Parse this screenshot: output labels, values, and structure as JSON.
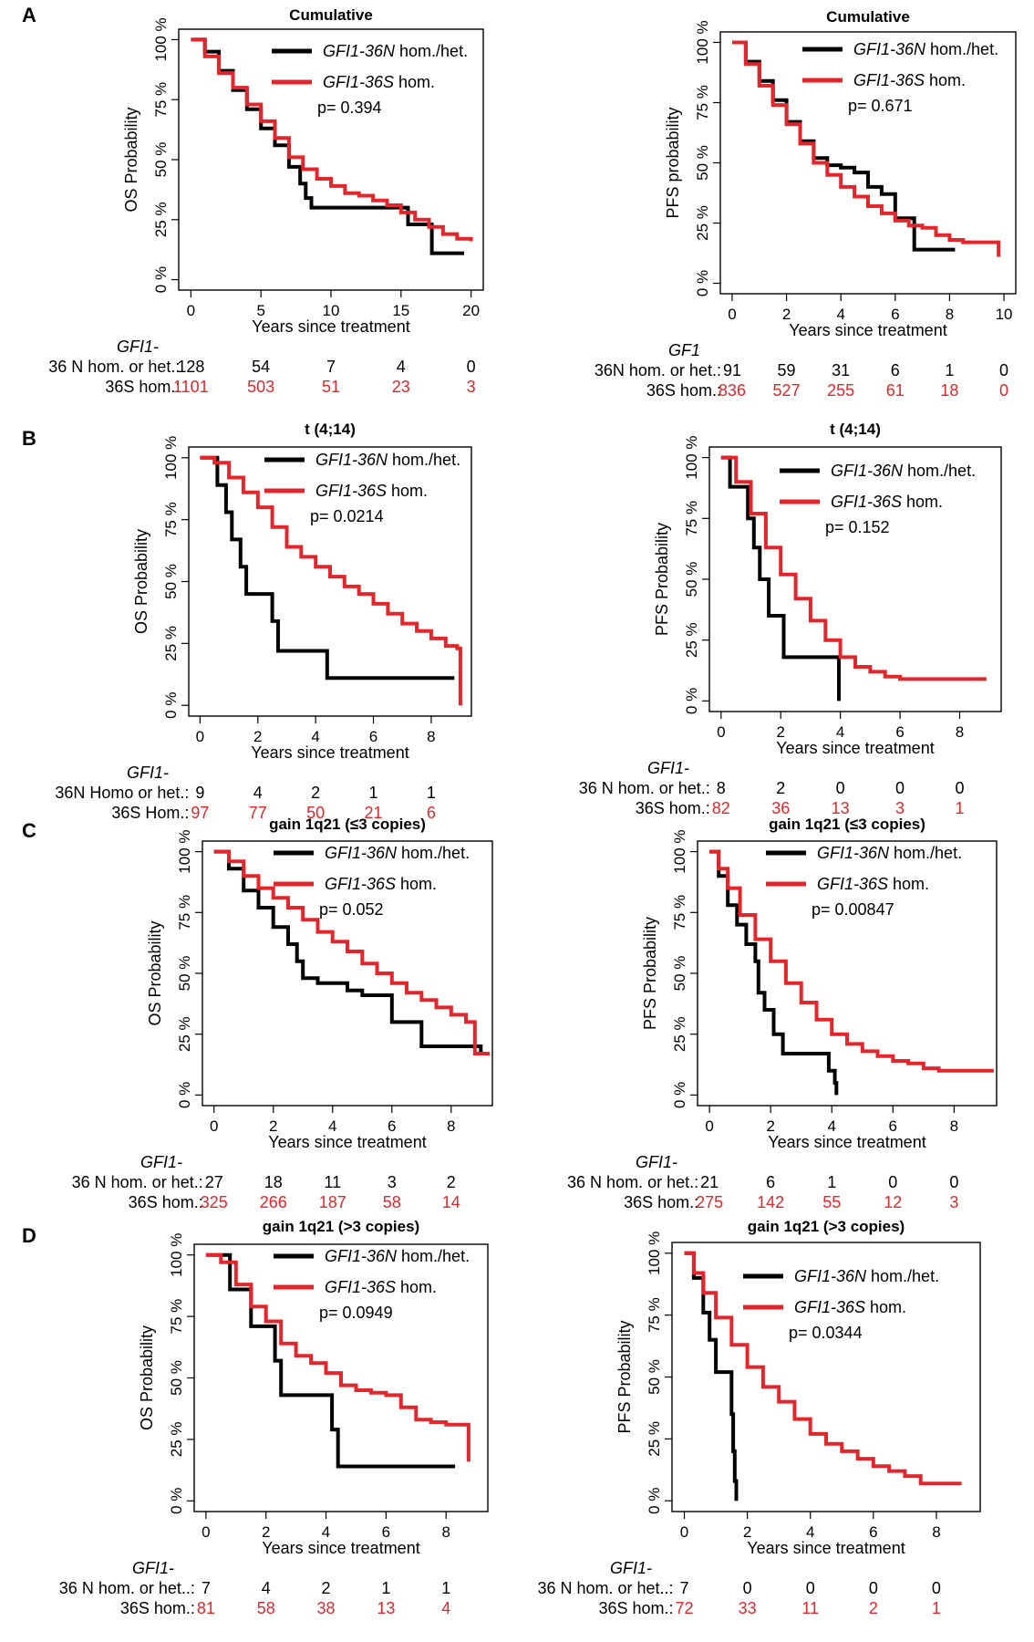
{
  "panels": [
    {
      "letter": "A"
    },
    {
      "letter": "B"
    },
    {
      "letter": "C"
    },
    {
      "letter": "D"
    }
  ],
  "chart_data": [
    {
      "type": "line",
      "panel": "A",
      "side": "left",
      "title": "Cumulative",
      "xlabel": "Years since treatment",
      "ylabel": "OS Probability",
      "xlim": [
        0,
        20
      ],
      "xticks": [
        "0",
        "5",
        "10",
        "15",
        "20"
      ],
      "ylim": [
        0,
        100
      ],
      "yticks": [
        "0 %",
        "25 %",
        "50 %",
        "75 %",
        "100 %"
      ],
      "legend": {
        "n_label": "GFI1-36N",
        "n_suffix": " hom./het.",
        "s_label": "GFI1-36S",
        "s_suffix": " hom.",
        "pvalue": "p= 0.394"
      },
      "series": [
        {
          "name": "GFI1-36N hom./het.",
          "color": "#000000",
          "x": [
            0,
            1,
            2,
            3,
            4,
            5,
            6,
            7,
            7.8,
            8.2,
            8.6,
            9,
            15,
            15.5,
            17,
            17.2,
            19.5
          ],
          "y": [
            100,
            95,
            87,
            79,
            71,
            63,
            56,
            47,
            40,
            34,
            30,
            30,
            30,
            23,
            23,
            11,
            11
          ]
        },
        {
          "name": "GFI1-36S hom.",
          "color": "#e3262b",
          "x": [
            0,
            1,
            2,
            3,
            4,
            5,
            6,
            7,
            8,
            9,
            10,
            11,
            12,
            13,
            14,
            15,
            16,
            17,
            18,
            19,
            20
          ],
          "y": [
            100,
            93,
            86,
            80,
            73,
            66,
            59,
            51,
            46,
            42,
            39,
            36,
            35,
            33,
            31,
            28,
            25,
            22,
            19,
            17,
            16
          ]
        }
      ],
      "risk_table": {
        "header": "GFI1-",
        "n_row_label": "36 N hom. or het.:",
        "s_row_label": "36S hom.:",
        "n_values": [
          "128",
          "54",
          "7",
          "4",
          "0"
        ],
        "s_values": [
          "1101",
          "503",
          "51",
          "23",
          "3"
        ]
      }
    },
    {
      "type": "line",
      "panel": "A",
      "side": "right",
      "title": "Cumulative",
      "xlabel": "Years since treatment",
      "ylabel": "PFS probability",
      "xlim": [
        0,
        10
      ],
      "xticks": [
        "0",
        "2",
        "4",
        "6",
        "8",
        "10"
      ],
      "ylim": [
        0,
        100
      ],
      "yticks": [
        "0 %",
        "25 %",
        "50 %",
        "75 %",
        "100 %"
      ],
      "legend": {
        "n_label": "GFI1-36N",
        "n_suffix": " hom./het.",
        "s_label": "GFI1-36S",
        "s_suffix": " hom.",
        "pvalue": "p= 0.671"
      },
      "series": [
        {
          "name": "GFI1-36N hom./het.",
          "color": "#000000",
          "x": [
            0,
            0.5,
            1,
            1.5,
            2,
            2.5,
            3,
            3.5,
            4,
            4.5,
            5,
            5.5,
            6,
            6.5,
            6.7,
            7,
            8.2
          ],
          "y": [
            100,
            92,
            84,
            76,
            67,
            59,
            52,
            49,
            48,
            46,
            40,
            37,
            27,
            27,
            14,
            14,
            14
          ]
        },
        {
          "name": "GFI1-36S hom.",
          "color": "#e3262b",
          "x": [
            0,
            0.5,
            1,
            1.5,
            2,
            2.5,
            3,
            3.5,
            4,
            4.5,
            5,
            5.5,
            6,
            6.5,
            7,
            7.5,
            8,
            8.5,
            9,
            9.5,
            9.8
          ],
          "y": [
            100,
            91,
            82,
            74,
            66,
            58,
            50,
            45,
            40,
            36,
            32,
            29,
            26,
            24,
            23,
            20,
            18,
            17,
            17,
            17,
            11
          ]
        }
      ],
      "risk_table": {
        "header": "GF1",
        "n_row_label": "36N hom. or het.:",
        "s_row_label": "36S hom.:",
        "n_values": [
          "91",
          "59",
          "31",
          "6",
          "1",
          "0"
        ],
        "s_values": [
          "836",
          "527",
          "255",
          "61",
          "18",
          "0"
        ]
      }
    },
    {
      "type": "line",
      "panel": "B",
      "side": "left",
      "title": "t (4;14)",
      "xlabel": "Years since treatment",
      "ylabel": "OS Probability",
      "xlim": [
        0,
        9
      ],
      "xticks": [
        "0",
        "2",
        "4",
        "6",
        "8"
      ],
      "ylim": [
        0,
        100
      ],
      "yticks": [
        "0 %",
        "25 %",
        "50 %",
        "75 %",
        "100 %"
      ],
      "legend": {
        "n_label": "GFI1-36N",
        "n_suffix": " hom./het.",
        "s_label": "GFI1-36S",
        "s_suffix": " hom.",
        "pvalue": "p= 0.0214"
      },
      "series": [
        {
          "name": "GFI1-36N hom./het.",
          "color": "#000000",
          "x": [
            0,
            0.5,
            0.6,
            0.9,
            1.1,
            1.4,
            1.6,
            2.4,
            2.5,
            2.7,
            4.2,
            4.4,
            8.8
          ],
          "y": [
            100,
            100,
            89,
            78,
            67,
            56,
            45,
            45,
            34,
            22,
            22,
            11,
            11
          ]
        },
        {
          "name": "GFI1-36S hom.",
          "color": "#e3262b",
          "x": [
            0,
            0.5,
            1,
            1.5,
            2,
            2.5,
            3,
            3.5,
            4,
            4.5,
            5,
            5.5,
            6,
            6.5,
            7,
            7.5,
            8,
            8.5,
            8.9,
            9,
            9.01
          ],
          "y": [
            100,
            98,
            92,
            86,
            80,
            72,
            64,
            60,
            56,
            52,
            48,
            45,
            41,
            37,
            33,
            30,
            27,
            24,
            23,
            23,
            0
          ]
        }
      ],
      "risk_table": {
        "header": "GFI1-",
        "n_row_label": "36N Homo or het.:",
        "s_row_label": "36S Hom.:",
        "n_values": [
          "9",
          "4",
          "2",
          "1",
          "1"
        ],
        "s_values": [
          "97",
          "77",
          "50",
          "21",
          "6"
        ]
      }
    },
    {
      "type": "line",
      "panel": "B",
      "side": "right",
      "title": "t (4;14)",
      "xlabel": "Years since treatment",
      "ylabel": "PFS Probability",
      "xlim": [
        0,
        9
      ],
      "xticks": [
        "0",
        "2",
        "4",
        "6",
        "8"
      ],
      "ylim": [
        0,
        100
      ],
      "yticks": [
        "0 %",
        "25 %",
        "50 %",
        "75 %",
        "100 %"
      ],
      "legend": {
        "n_label": "GFI1-36N",
        "n_suffix": " hom./het.",
        "s_label": "GFI1-36S",
        "s_suffix": " hom.",
        "pvalue": "p= 0.152"
      },
      "series": [
        {
          "name": "GFI1-36N hom./het.",
          "color": "#000000",
          "x": [
            0,
            0.3,
            0.9,
            1.1,
            1.3,
            1.6,
            2,
            2.1,
            3.9,
            3.95
          ],
          "y": [
            100,
            88,
            75,
            63,
            50,
            35,
            35,
            18,
            18,
            0
          ]
        },
        {
          "name": "GFI1-36S hom.",
          "color": "#e3262b",
          "x": [
            0,
            0.5,
            1,
            1.5,
            2,
            2.5,
            3,
            3.5,
            4,
            4.5,
            5,
            5.5,
            6,
            7,
            8,
            8.9
          ],
          "y": [
            100,
            90,
            77,
            63,
            52,
            42,
            33,
            25,
            18,
            14,
            12,
            10,
            9,
            9,
            9,
            9
          ]
        }
      ],
      "risk_table": {
        "header": "GFI1-",
        "n_row_label": "36 N hom. or het.:",
        "s_row_label": "36S hom.:",
        "n_values": [
          "8",
          "2",
          "0",
          "0",
          "0"
        ],
        "s_values": [
          "82",
          "36",
          "13",
          "3",
          "1"
        ]
      }
    },
    {
      "type": "line",
      "panel": "C",
      "side": "left",
      "title": "gain 1q21 (≤3 copies)",
      "xlabel": "Years since treatment",
      "ylabel": "OS Probability",
      "xlim": [
        0,
        9
      ],
      "xticks": [
        "0",
        "2",
        "4",
        "6",
        "8"
      ],
      "ylim": [
        0,
        100
      ],
      "yticks": [
        "0 %",
        "25 %",
        "50 %",
        "75 %",
        "100 %"
      ],
      "legend": {
        "n_label": "GFI1-36N",
        "n_suffix": " hom./het.",
        "s_label": "GFI1-36S",
        "s_suffix": " hom.",
        "pvalue": "p= 0.052"
      },
      "series": [
        {
          "name": "GFI1-36N hom./het.",
          "color": "#000000",
          "x": [
            0,
            0.5,
            1,
            1.5,
            2,
            2.5,
            2.8,
            3,
            3.5,
            4,
            4.5,
            5,
            5.8,
            6,
            6.5,
            7,
            8,
            8.5,
            9
          ],
          "y": [
            100,
            93,
            84,
            77,
            69,
            62,
            55,
            48,
            46,
            46,
            43,
            41,
            41,
            30,
            30,
            20,
            20,
            20,
            17
          ]
        },
        {
          "name": "GFI1-36S hom.",
          "color": "#e3262b",
          "x": [
            0,
            0.5,
            1,
            1.5,
            2,
            2.5,
            3,
            3.5,
            4,
            4.5,
            5,
            5.5,
            6,
            6.5,
            7,
            7.5,
            8,
            8.5,
            8.8,
            9.3
          ],
          "y": [
            100,
            96,
            90,
            85,
            81,
            77,
            72,
            67,
            63,
            59,
            54,
            50,
            46,
            42,
            39,
            36,
            33,
            30,
            17,
            17
          ]
        }
      ],
      "risk_table": {
        "header": "GFI1-",
        "n_row_label": "36 N hom. or het.:",
        "s_row_label": "36S hom.:",
        "n_values": [
          "27",
          "18",
          "11",
          "3",
          "2"
        ],
        "s_values": [
          "325",
          "266",
          "187",
          "58",
          "14"
        ]
      }
    },
    {
      "type": "line",
      "panel": "C",
      "side": "right",
      "title": "gain 1q21 (≤3 copies)",
      "xlabel": "Years since treatment",
      "ylabel": "PFS Probability",
      "xlim": [
        0,
        9
      ],
      "xticks": [
        "0",
        "2",
        "4",
        "6",
        "8"
      ],
      "ylim": [
        0,
        100
      ],
      "yticks": [
        "0 %",
        "25 %",
        "50 %",
        "75 %",
        "100 %"
      ],
      "legend": {
        "n_label": "GFI1-36N",
        "n_suffix": " hom./het.",
        "s_label": "GFI1-36S",
        "s_suffix": " hom.",
        "pvalue": "p= 0.00847"
      },
      "series": [
        {
          "name": "GFI1-36N hom./het.",
          "color": "#000000",
          "x": [
            0,
            0.3,
            0.6,
            0.9,
            1.2,
            1.5,
            1.6,
            1.8,
            2.1,
            2.4,
            3.5,
            3.9,
            4.1,
            4.15
          ],
          "y": [
            100,
            90,
            78,
            70,
            62,
            55,
            42,
            35,
            25,
            17,
            17,
            10,
            5,
            0
          ]
        },
        {
          "name": "GFI1-36S hom.",
          "color": "#e3262b",
          "x": [
            0,
            0.3,
            0.6,
            1,
            1.5,
            2,
            2.5,
            3,
            3.5,
            4,
            4.5,
            5,
            5.5,
            6,
            6.5,
            7,
            7.5,
            8,
            9.3
          ],
          "y": [
            100,
            93,
            85,
            74,
            64,
            55,
            46,
            38,
            31,
            25,
            21,
            18,
            16,
            14,
            13,
            11,
            10,
            10,
            10
          ]
        }
      ],
      "risk_table": {
        "header": "GFI1-",
        "n_row_label": "36 N hom. or het.:",
        "s_row_label": "36S hom.:",
        "n_values": [
          "21",
          "6",
          "1",
          "0",
          "0"
        ],
        "s_values": [
          "275",
          "142",
          "55",
          "12",
          "3"
        ]
      }
    },
    {
      "type": "line",
      "panel": "D",
      "side": "left",
      "title": "gain 1q21 (>3 copies)",
      "xlabel": "Years since treatment",
      "ylabel": "OS Probability",
      "xlim": [
        0,
        9
      ],
      "xticks": [
        "0",
        "2",
        "4",
        "6",
        "8"
      ],
      "ylim": [
        0,
        100
      ],
      "yticks": [
        "0 %",
        "25 %",
        "50 %",
        "75 %",
        "100 %"
      ],
      "legend": {
        "n_label": "GFI1-36N",
        "n_suffix": " hom./het.",
        "s_label": "GFI1-36S",
        "s_suffix": " hom.",
        "pvalue": "p= 0.0949"
      },
      "series": [
        {
          "name": "GFI1-36N hom./het.",
          "color": "#000000",
          "x": [
            0,
            0.6,
            0.8,
            1.4,
            1.5,
            2.2,
            2.3,
            2.5,
            4.2,
            4.4,
            8.3
          ],
          "y": [
            100,
            100,
            86,
            86,
            71,
            71,
            57,
            43,
            29,
            14,
            14
          ]
        },
        {
          "name": "GFI1-36S hom.",
          "color": "#e3262b",
          "x": [
            0,
            0.5,
            1,
            1.5,
            2,
            2.5,
            3,
            3.5,
            4,
            4.5,
            5,
            5.5,
            6,
            6.5,
            7,
            7.5,
            8,
            8.5,
            8.7,
            8.75
          ],
          "y": [
            100,
            97,
            88,
            79,
            73,
            64,
            59,
            56,
            52,
            47,
            45,
            44,
            43,
            38,
            33,
            32,
            31,
            31,
            31,
            16
          ]
        }
      ],
      "risk_table": {
        "header": "GFI1-",
        "n_row_label": "36 N hom. or het..:",
        "s_row_label": "36S hom.:",
        "n_values": [
          "7",
          "4",
          "2",
          "1",
          "1"
        ],
        "s_values": [
          "81",
          "58",
          "38",
          "13",
          "4"
        ]
      }
    },
    {
      "type": "line",
      "panel": "D",
      "side": "right",
      "title": "gain 1q21 (>3 copies)",
      "xlabel": "Years since treatment",
      "ylabel": "PFS Probability",
      "xlim": [
        0,
        9
      ],
      "xticks": [
        "0",
        "2",
        "4",
        "6",
        "8"
      ],
      "ylim": [
        0,
        100
      ],
      "yticks": [
        "0 %",
        "25 %",
        "50 %",
        "75 %",
        "100 %"
      ],
      "legend": {
        "n_label": "GFI1-36N",
        "n_suffix": " hom./het.",
        "s_label": "GFI1-36S",
        "s_suffix": " hom.",
        "pvalue": "p= 0.0344"
      },
      "series": [
        {
          "name": "GFI1-36N hom./het.",
          "color": "#000000",
          "x": [
            0,
            0.3,
            0.6,
            0.8,
            1,
            1.4,
            1.5,
            1.55,
            1.6,
            1.65
          ],
          "y": [
            100,
            90,
            76,
            65,
            52,
            52,
            35,
            20,
            8,
            0
          ]
        },
        {
          "name": "GFI1-36S hom.",
          "color": "#e3262b",
          "x": [
            0,
            0.3,
            0.6,
            1,
            1.5,
            2,
            2.5,
            3,
            3.5,
            4,
            4.5,
            5,
            5.5,
            6,
            6.5,
            7,
            7.5,
            8,
            8.5,
            8.8
          ],
          "y": [
            100,
            92,
            84,
            74,
            63,
            54,
            46,
            40,
            33,
            27,
            23,
            20,
            17,
            14,
            12,
            10,
            7,
            7,
            7,
            7
          ]
        }
      ],
      "risk_table": {
        "header": "GFI1-",
        "n_row_label": "36 N hom. or het..:",
        "s_row_label": "36S hom.:",
        "n_values": [
          "7",
          "0",
          "0",
          "0",
          "0"
        ],
        "s_values": [
          "72",
          "33",
          "11",
          "2",
          "1"
        ]
      }
    }
  ]
}
